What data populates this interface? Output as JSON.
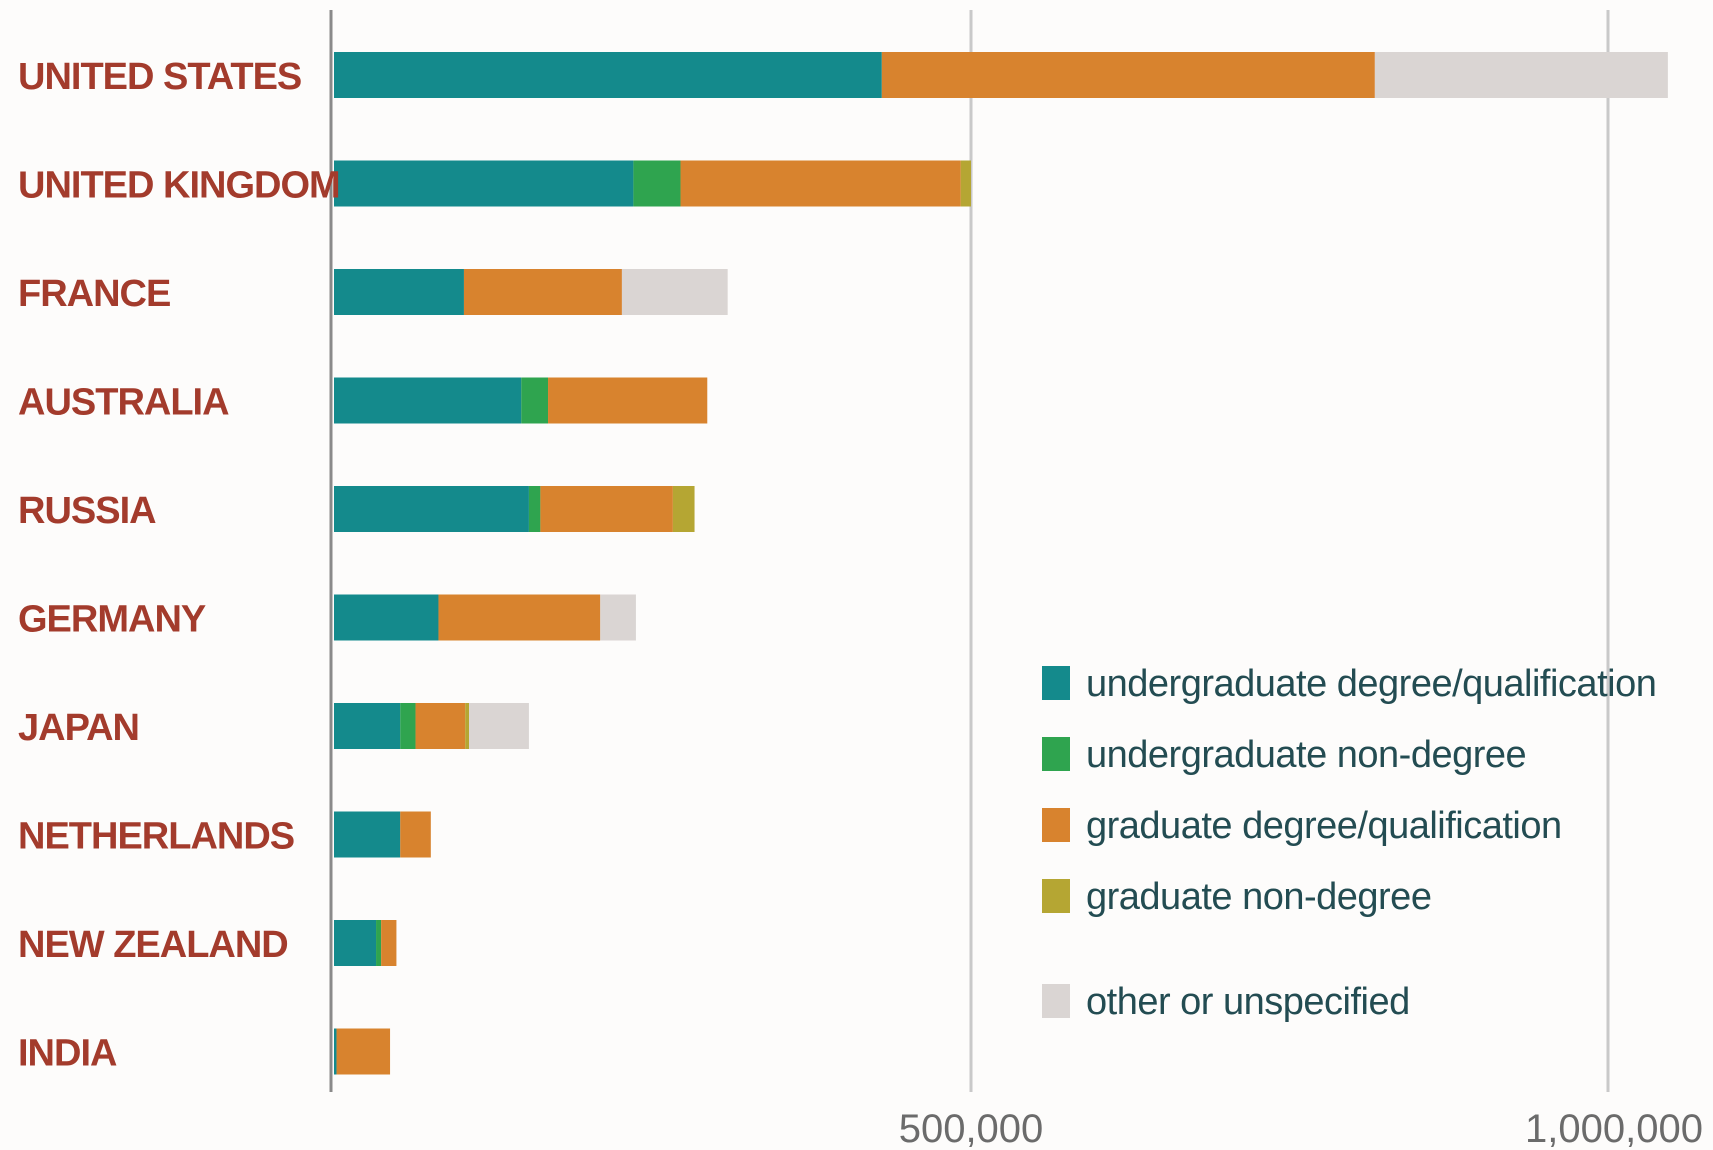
{
  "chart_data": {
    "type": "bar",
    "orientation": "horizontal",
    "stacked": true,
    "categories": [
      "UNITED STATES",
      "UNITED KINGDOM",
      "FRANCE",
      "AUSTRALIA",
      "RUSSIA",
      "GERMANY",
      "JAPAN",
      "NETHERLANDS",
      "NEW ZEALAND",
      "INDIA"
    ],
    "series": [
      {
        "name": "undergraduate degree/qualification",
        "color": "#148a8c",
        "values": [
          430000,
          235000,
          102000,
          147000,
          153000,
          82000,
          52000,
          52000,
          33000,
          2000
        ]
      },
      {
        "name": "undergraduate non-degree",
        "color": "#2fa44f",
        "values": [
          0,
          37000,
          0,
          21000,
          9000,
          0,
          12000,
          0,
          4000,
          0
        ]
      },
      {
        "name": "graduate degree/qualification",
        "color": "#d8832e",
        "values": [
          387000,
          220000,
          124000,
          125000,
          104000,
          127000,
          39000,
          24000,
          12000,
          42000
        ]
      },
      {
        "name": "graduate non-degree",
        "color": "#b5a633",
        "values": [
          0,
          8000,
          0,
          0,
          17000,
          0,
          3000,
          0,
          0,
          0
        ]
      },
      {
        "name": "other or unspecified",
        "color": "#dad5d3",
        "values": [
          230000,
          0,
          83000,
          0,
          0,
          28000,
          47000,
          0,
          0,
          0
        ]
      }
    ],
    "xlim": [
      0,
      1000000
    ],
    "xticks": [
      "500,000",
      "1,000,000"
    ],
    "xtick_values": [
      500000,
      1000000
    ],
    "xlabel": "",
    "ylabel": "",
    "title": "",
    "grid": "vertical gridlines at ticks",
    "legend_position": "bottom-right",
    "label_color": "#a33b2c",
    "legend_text_color": "#234c52"
  }
}
